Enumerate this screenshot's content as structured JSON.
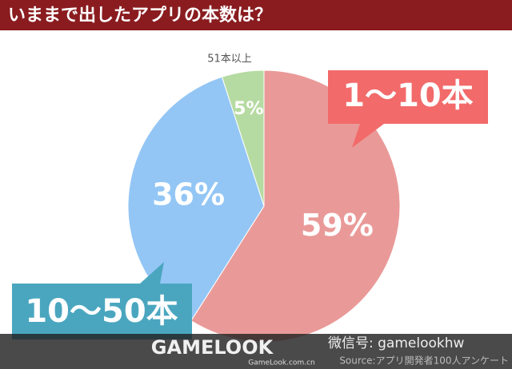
{
  "chart_data": {
    "type": "pie",
    "title": "いままで出したアプリの本数は？",
    "categories": [
      "1〜10本",
      "10〜50本",
      "51本以上"
    ],
    "values": [
      59,
      36,
      5
    ],
    "value_labels": [
      "59%",
      "36%",
      "5%"
    ],
    "colors": [
      "#e99a98",
      "#93c6f5",
      "#b6dba2"
    ]
  },
  "watermark": {
    "brand": "GAMELOOK",
    "site": "GameLook.com.cn",
    "wechat": "微信号: gamelookhw",
    "source": "Source:アプリ開発者100人アンケート"
  }
}
